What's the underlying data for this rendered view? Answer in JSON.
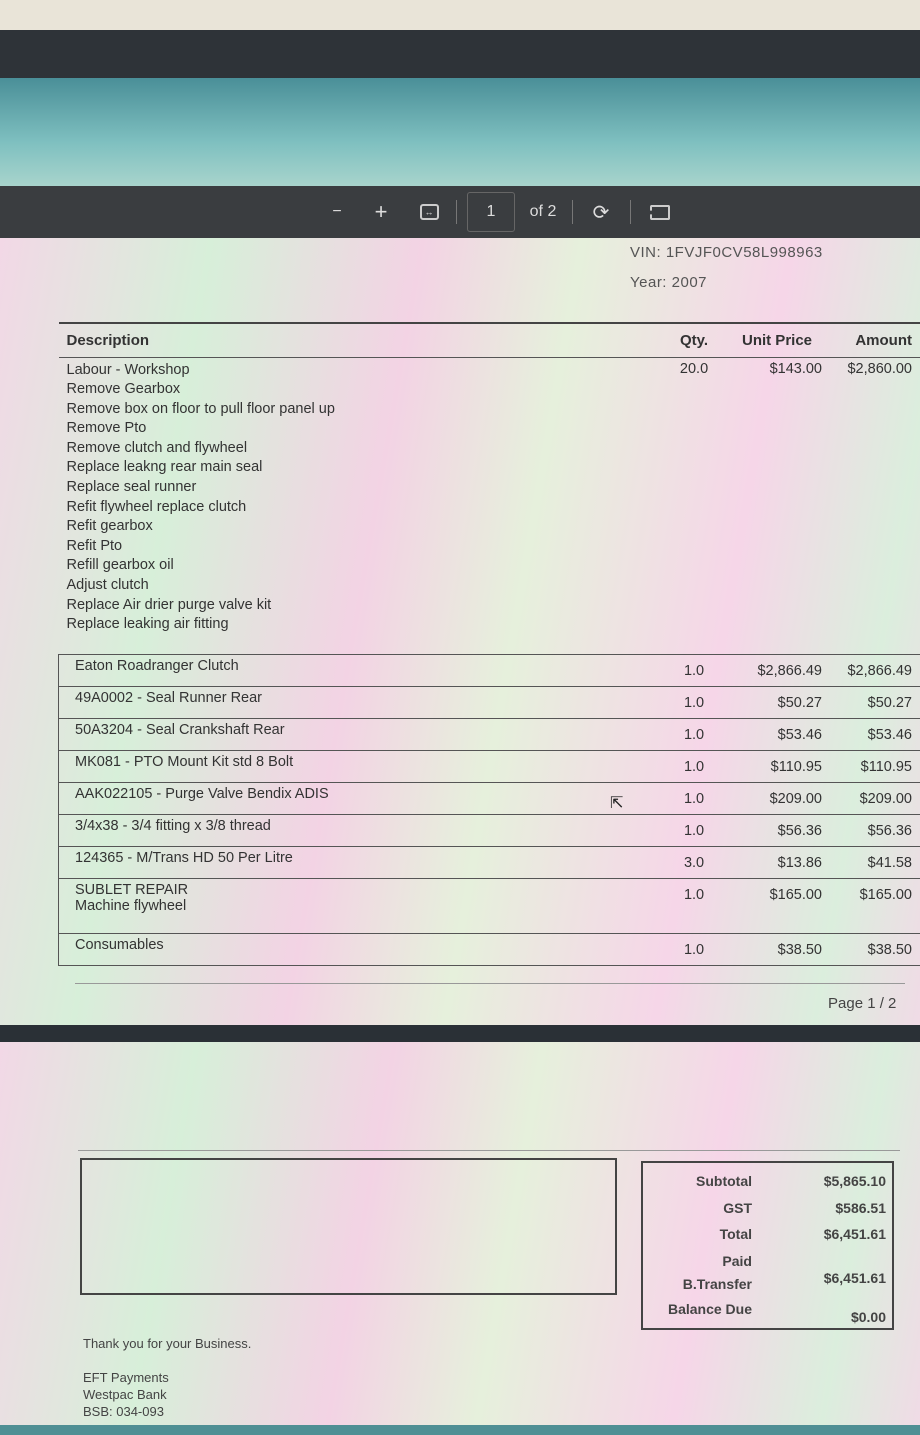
{
  "toolbar": {
    "zoom_out": "−",
    "zoom_in": "+",
    "page_current": "1",
    "page_total": "of 2",
    "icons": [
      "minus-icon",
      "plus-icon",
      "fit-width-icon",
      "rotate-icon",
      "two-page-icon"
    ]
  },
  "vehicle": {
    "vin": "VIN: 1FVJF0CV58L998963",
    "year": "Year: 2007"
  },
  "table": {
    "headers": {
      "description": "Description",
      "qty": "Qty.",
      "unit_price": "Unit Price",
      "amount": "Amount"
    },
    "labour": {
      "lines": [
        "Labour - Workshop",
        "Remove Gearbox",
        "Remove box on floor to pull floor panel up",
        "Remove Pto",
        "Remove clutch and flywheel",
        "Replace leakng rear main seal",
        "Replace seal runner",
        "Refit flywheel replace clutch",
        "Refit gearbox",
        "Refit Pto",
        "Refill gearbox oil",
        "Adjust clutch",
        "Replace Air drier purge valve kit",
        "Replace leaking air fitting"
      ],
      "qty": "20.0",
      "unit_price": "$143.00",
      "amount": "$2,860.00"
    },
    "rows": [
      {
        "description": "Eaton Roadranger Clutch",
        "qty": "1.0",
        "unit_price": "$2,866.49",
        "amount": "$2,866.49"
      },
      {
        "description": "49A0002 - Seal Runner Rear",
        "qty": "1.0",
        "unit_price": "$50.27",
        "amount": "$50.27"
      },
      {
        "description": "50A3204 - Seal Crankshaft Rear",
        "qty": "1.0",
        "unit_price": "$53.46",
        "amount": "$53.46"
      },
      {
        "description": "MK081 - PTO Mount Kit std 8 Bolt",
        "qty": "1.0",
        "unit_price": "$110.95",
        "amount": "$110.95"
      },
      {
        "description": "AAK022105 - Purge Valve Bendix ADIS",
        "qty": "1.0",
        "unit_price": "$209.00",
        "amount": "$209.00"
      },
      {
        "description": "3/4x38 - 3/4 fitting x 3/8 thread",
        "qty": "1.0",
        "unit_price": "$56.36",
        "amount": "$56.36"
      },
      {
        "description": "124365 - M/Trans HD 50 Per Litre",
        "qty": "3.0",
        "unit_price": "$13.86",
        "amount": "$41.58"
      },
      {
        "description": "SUBLET REPAIR",
        "description2": "Machine flywheel",
        "qty": "1.0",
        "unit_price": "$165.00",
        "amount": "$165.00"
      },
      {
        "description": "Consumables",
        "qty": "1.0",
        "unit_price": "$38.50",
        "amount": "$38.50"
      }
    ]
  },
  "page_footer": "Page  1 / 2",
  "totals": {
    "subtotal_label": "Subtotal",
    "subtotal": "$5,865.10",
    "gst_label": "GST",
    "gst": "$586.51",
    "total_label": "Total",
    "total": "$6,451.61",
    "paid_label": "Paid",
    "method_label": "B.Transfer",
    "paid": "$6,451.61",
    "balance_label": "Balance Due",
    "balance": "$0.00"
  },
  "notes": {
    "thanks": "Thank you for your Business.",
    "eft": "EFT Payments",
    "bank": "Westpac Bank",
    "bsb": "BSB: 034-093"
  }
}
